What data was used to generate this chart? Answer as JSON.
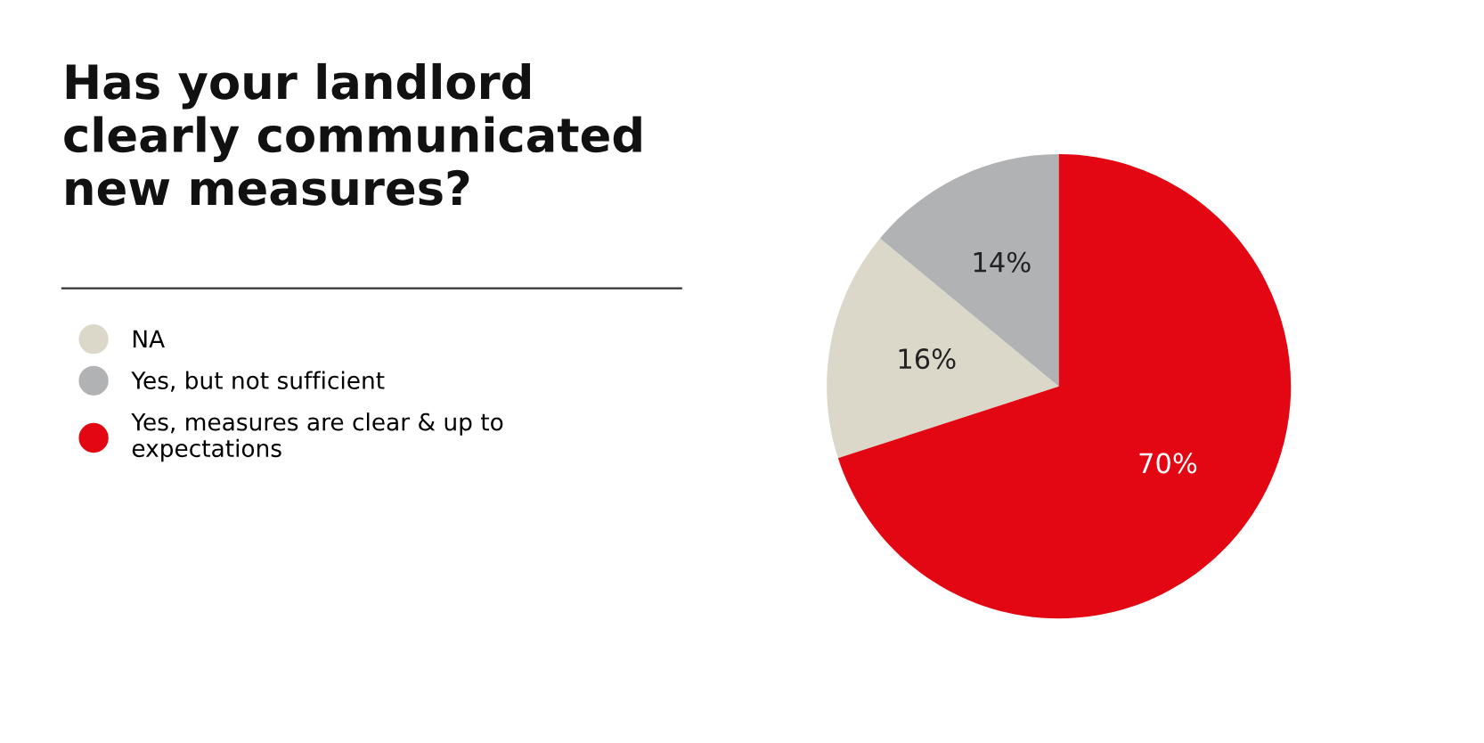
{
  "chart_data": {
    "type": "pie",
    "title": "Has your landlord\nclearly communicated\nnew measures?",
    "categories": [
      "NA",
      "Yes, but not sufficient",
      "Yes, measures are clear & up to\nexpectations"
    ],
    "values": [
      16,
      14,
      70
    ],
    "colors": [
      "#dcd8c9",
      "#b1b2b4",
      "#e30613"
    ],
    "value_labels": [
      "16%",
      "14%",
      "70%"
    ],
    "legend": "left"
  }
}
